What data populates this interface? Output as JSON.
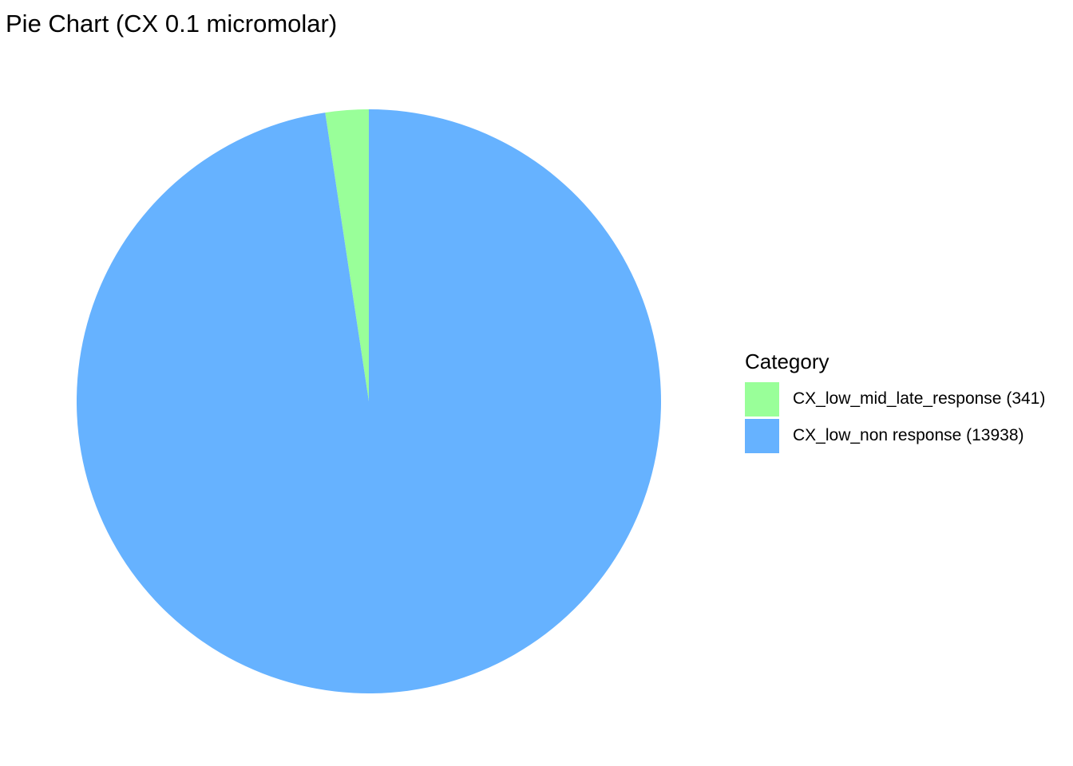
{
  "chart_data": {
    "type": "pie",
    "title": "Pie Chart (CX 0.1 micromolar)",
    "legend_title": "Category",
    "legend_position": "right",
    "slices": [
      {
        "label": "CX_low_mid_late_response (341)",
        "value": 341,
        "color": "#99FF99"
      },
      {
        "label": "CX_low_non response (13938)",
        "value": 13938,
        "color": "#66B2FF"
      }
    ]
  }
}
